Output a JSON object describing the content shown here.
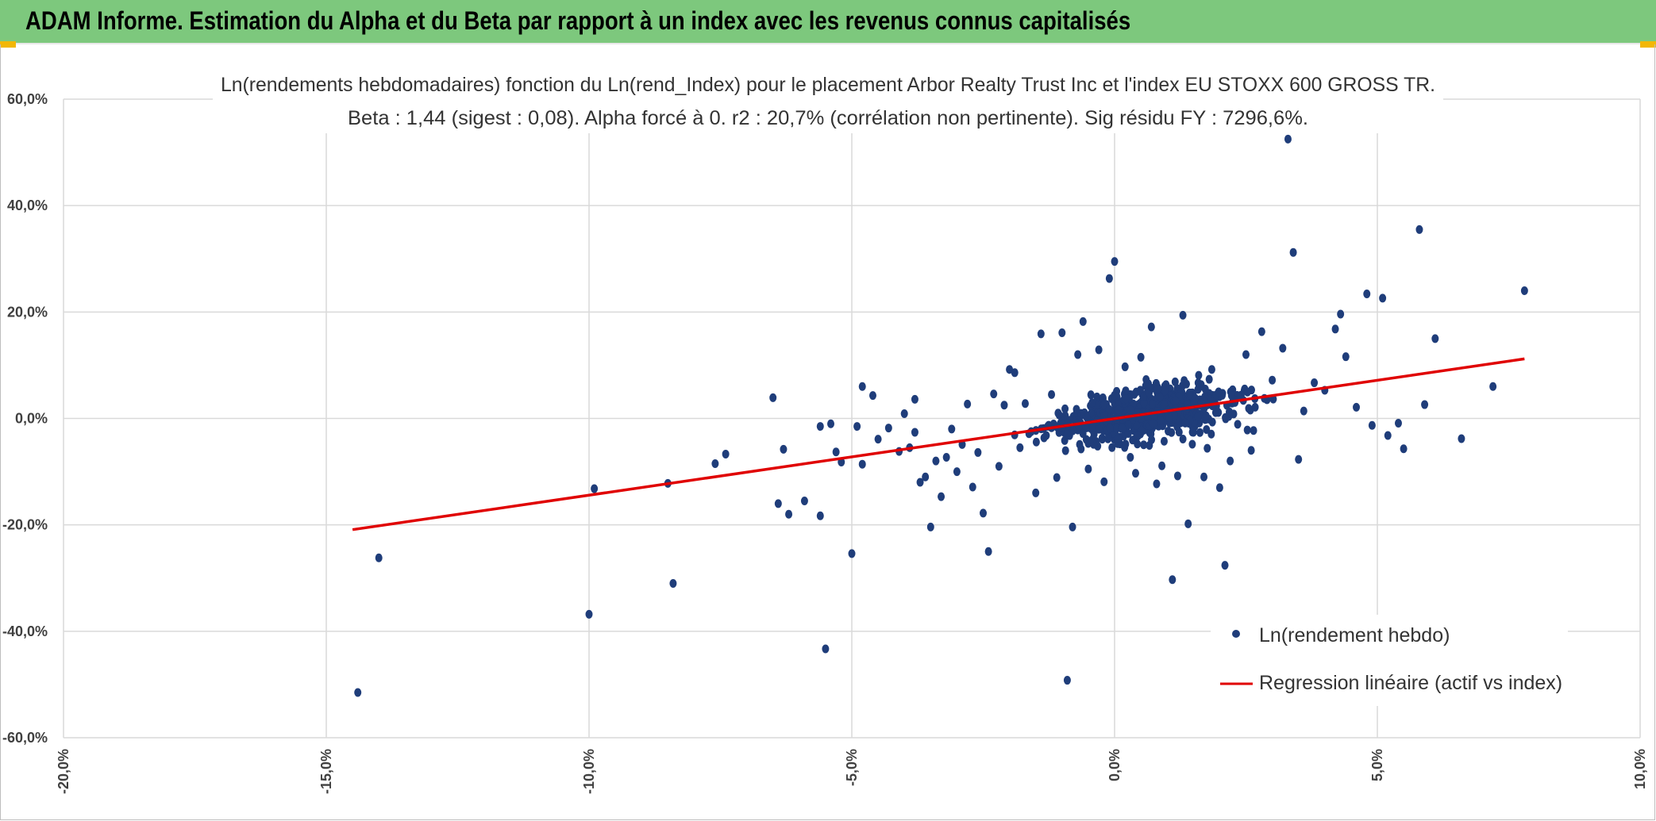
{
  "header": {
    "title": "ADAM Informe. Estimation du Alpha et du Beta par rapport à un index avec les revenus connus capitalisés"
  },
  "colors": {
    "header_bg": "#7dc87d",
    "corner_accent": "#f2b705",
    "points": "#1f3d7a",
    "regression": "#e00000",
    "grid": "#d9d9d9"
  },
  "chart_data": {
    "type": "scatter",
    "title_line1": "Ln(rendements hebdomadaires) fonction du Ln(rend_Index) pour le placement Arbor Realty Trust Inc et l'index EU STOXX 600 GROSS TR.",
    "title_line2": "Beta : 1,44 (sigest : 0,08). Alpha forcé à 0. r2 : 20,7% (corrélation non pertinente). Sig résidu FY : 7296,6%.",
    "xlim": [
      -20,
      10
    ],
    "ylim": [
      -60,
      60
    ],
    "x_ticks": [
      "-20,0%",
      "-15,0%",
      "-10,0%",
      "-5,0%",
      "0,0%",
      "5,0%",
      "10,0%"
    ],
    "x_tick_values": [
      -20,
      -15,
      -10,
      -5,
      0,
      5,
      10
    ],
    "y_ticks": [
      "60,0%",
      "40,0%",
      "20,0%",
      "0,0%",
      "-20,0%",
      "-40,0%",
      "-60,0%"
    ],
    "y_tick_values": [
      60,
      40,
      20,
      0,
      -20,
      -40,
      -60
    ],
    "grid": true,
    "legend_position": "bottom-right",
    "series": [
      {
        "name": "Ln(rendement hebdo)",
        "kind": "scatter",
        "points": [
          [
            -14.4,
            -51.5
          ],
          [
            -14.0,
            -26.2
          ],
          [
            -10.0,
            -36.8
          ],
          [
            -9.9,
            -13.2
          ],
          [
            -8.5,
            -12.2
          ],
          [
            -8.4,
            -31.0
          ],
          [
            -7.6,
            -8.5
          ],
          [
            -7.4,
            -6.7
          ],
          [
            -6.5,
            3.9
          ],
          [
            -6.4,
            -16.0
          ],
          [
            -6.3,
            -5.8
          ],
          [
            -6.2,
            -18.0
          ],
          [
            -5.9,
            -15.5
          ],
          [
            -5.6,
            -18.3
          ],
          [
            -5.6,
            -1.5
          ],
          [
            -5.5,
            -43.3
          ],
          [
            -5.4,
            -1.0
          ],
          [
            -5.3,
            -6.3
          ],
          [
            -5.2,
            -8.2
          ],
          [
            -5.0,
            -25.4
          ],
          [
            -4.9,
            -1.5
          ],
          [
            -4.8,
            -8.6
          ],
          [
            -4.8,
            6.0
          ],
          [
            -4.6,
            4.3
          ],
          [
            -4.5,
            -3.9
          ],
          [
            -4.3,
            -1.8
          ],
          [
            -4.1,
            -6.2
          ],
          [
            -4.0,
            0.9
          ],
          [
            -3.9,
            -5.5
          ],
          [
            -3.8,
            -2.6
          ],
          [
            -3.8,
            3.6
          ],
          [
            -3.7,
            -12.0
          ],
          [
            -3.6,
            -11.0
          ],
          [
            -3.5,
            -20.4
          ],
          [
            -3.4,
            -8.0
          ],
          [
            -3.3,
            -14.7
          ],
          [
            -3.2,
            -7.3
          ],
          [
            -3.1,
            -2.0
          ],
          [
            -3.0,
            -10.0
          ],
          [
            -2.9,
            -4.9
          ],
          [
            -2.8,
            2.7
          ],
          [
            -2.7,
            -12.9
          ],
          [
            -2.6,
            -6.4
          ],
          [
            -2.5,
            -17.8
          ],
          [
            -2.4,
            -25.0
          ],
          [
            -2.3,
            4.6
          ],
          [
            -2.2,
            -9.0
          ],
          [
            -2.1,
            2.5
          ],
          [
            -2.0,
            9.2
          ],
          [
            -1.9,
            8.6
          ],
          [
            -1.8,
            -5.5
          ],
          [
            -1.7,
            2.8
          ],
          [
            -1.5,
            -14.0
          ],
          [
            -1.4,
            15.9
          ],
          [
            -1.3,
            -3.2
          ],
          [
            -1.2,
            4.5
          ],
          [
            -1.1,
            -11.1
          ],
          [
            -1.0,
            16.1
          ],
          [
            -0.9,
            -49.2
          ],
          [
            -0.8,
            -20.4
          ],
          [
            -0.7,
            12.0
          ],
          [
            -0.6,
            18.2
          ],
          [
            -0.5,
            -9.5
          ],
          [
            -0.4,
            -4.2
          ],
          [
            -0.3,
            12.9
          ],
          [
            -0.2,
            -11.9
          ],
          [
            -0.1,
            26.3
          ],
          [
            0.0,
            29.5
          ],
          [
            0.1,
            -3.5
          ],
          [
            0.2,
            9.7
          ],
          [
            0.3,
            -7.3
          ],
          [
            0.4,
            -10.3
          ],
          [
            0.5,
            11.5
          ],
          [
            0.6,
            7.3
          ],
          [
            0.7,
            17.2
          ],
          [
            0.8,
            -12.3
          ],
          [
            0.9,
            -8.9
          ],
          [
            1.0,
            3.5
          ],
          [
            1.1,
            -30.3
          ],
          [
            1.2,
            -10.8
          ],
          [
            1.3,
            19.4
          ],
          [
            1.4,
            -19.8
          ],
          [
            1.5,
            -2.6
          ],
          [
            1.6,
            8.1
          ],
          [
            1.7,
            -11.0
          ],
          [
            1.8,
            4.7
          ],
          [
            2.0,
            -13.0
          ],
          [
            2.1,
            -27.6
          ],
          [
            2.2,
            -8.0
          ],
          [
            2.3,
            3.7
          ],
          [
            2.5,
            12.0
          ],
          [
            2.6,
            -6.0
          ],
          [
            2.8,
            16.3
          ],
          [
            2.9,
            3.5
          ],
          [
            3.0,
            7.2
          ],
          [
            3.2,
            13.2
          ],
          [
            3.3,
            52.5
          ],
          [
            3.4,
            31.2
          ],
          [
            3.5,
            -7.7
          ],
          [
            3.6,
            1.4
          ],
          [
            3.8,
            6.7
          ],
          [
            4.0,
            5.3
          ],
          [
            4.2,
            16.8
          ],
          [
            4.3,
            19.6
          ],
          [
            4.4,
            11.6
          ],
          [
            4.6,
            2.1
          ],
          [
            4.8,
            23.4
          ],
          [
            4.9,
            -1.3
          ],
          [
            5.1,
            22.6
          ],
          [
            5.2,
            -3.2
          ],
          [
            5.4,
            -0.9
          ],
          [
            5.5,
            -5.7
          ],
          [
            5.8,
            35.5
          ],
          [
            5.9,
            2.6
          ],
          [
            6.1,
            15.0
          ],
          [
            6.6,
            -3.8
          ],
          [
            7.2,
            6.0
          ],
          [
            7.8,
            24.0
          ]
        ]
      },
      {
        "name": "Regression linéaire (actif vs index)",
        "kind": "line",
        "x": [
          -14.5,
          7.8
        ],
        "y": [
          -20.9,
          11.2
        ]
      }
    ]
  }
}
